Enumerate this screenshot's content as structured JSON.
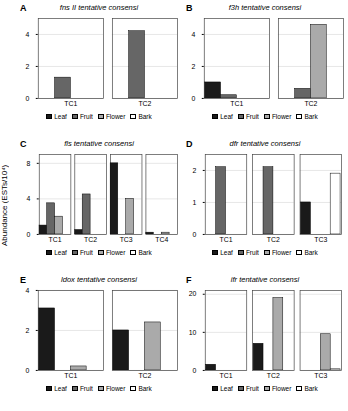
{
  "ylabel": "Abundance (ESTs/10⁴)",
  "chart_data": [
    {
      "type": "bar",
      "title": "fns II tentative consensi",
      "annotations": [
        "A"
      ],
      "categories": [
        "TC1",
        "TC2"
      ],
      "series": [
        {
          "name": "Leaf",
          "color": "#1a1a1a",
          "values": [
            0,
            0
          ]
        },
        {
          "name": "Fruit",
          "color": "#666666",
          "values": [
            1.3,
            4.2
          ]
        },
        {
          "name": "Flower",
          "color": "#aaaaaa",
          "values": [
            0,
            0
          ]
        },
        {
          "name": "Bark",
          "color": "#ffffff",
          "values": [
            0,
            0
          ]
        }
      ],
      "ylim": [
        0,
        5
      ],
      "yticks": [
        0,
        2,
        4
      ],
      "grid": true,
      "legend": "bottom"
    },
    {
      "type": "bar",
      "title": "f3h tentative consensi",
      "annotations": [
        "B"
      ],
      "categories": [
        "TC1",
        "TC2"
      ],
      "series": [
        {
          "name": "Leaf",
          "color": "#1a1a1a",
          "values": [
            1.0,
            0
          ]
        },
        {
          "name": "Fruit",
          "color": "#666666",
          "values": [
            0.2,
            0.6
          ]
        },
        {
          "name": "Flower",
          "color": "#aaaaaa",
          "values": [
            0,
            4.6
          ]
        },
        {
          "name": "Bark",
          "color": "#ffffff",
          "values": [
            0,
            0
          ]
        }
      ],
      "ylim": [
        0,
        5
      ],
      "yticks": [
        0,
        2,
        4
      ],
      "grid": true,
      "legend": "bottom"
    },
    {
      "type": "bar",
      "title": "fls tentative consensi",
      "annotations": [
        "C"
      ],
      "categories": [
        "TC1",
        "TC2",
        "TC3",
        "TC4"
      ],
      "series": [
        {
          "name": "Leaf",
          "color": "#1a1a1a",
          "values": [
            1.0,
            0.5,
            8.0,
            0.2
          ]
        },
        {
          "name": "Fruit",
          "color": "#666666",
          "values": [
            3.5,
            4.5,
            0,
            0
          ]
        },
        {
          "name": "Flower",
          "color": "#aaaaaa",
          "values": [
            2.0,
            0,
            4.0,
            0.2
          ]
        },
        {
          "name": "Bark",
          "color": "#ffffff",
          "values": [
            0,
            0,
            0,
            0
          ]
        }
      ],
      "ylim": [
        0,
        9
      ],
      "yticks": [
        0,
        4,
        8
      ],
      "grid": true,
      "legend": "bottom"
    },
    {
      "type": "bar",
      "title": "dfr tentative consensi",
      "annotations": [
        "D"
      ],
      "categories": [
        "TC1",
        "TC2",
        "TC3"
      ],
      "series": [
        {
          "name": "Leaf",
          "color": "#1a1a1a",
          "values": [
            0,
            0,
            1.0
          ]
        },
        {
          "name": "Fruit",
          "color": "#666666",
          "values": [
            2.1,
            2.1,
            0
          ]
        },
        {
          "name": "Flower",
          "color": "#aaaaaa",
          "values": [
            0,
            0,
            0
          ]
        },
        {
          "name": "Bark",
          "color": "#ffffff",
          "values": [
            0,
            0,
            1.9
          ]
        }
      ],
      "ylim": [
        0,
        2.5
      ],
      "yticks": [
        0,
        1,
        2
      ],
      "grid": true,
      "legend": "bottom"
    },
    {
      "type": "bar",
      "title": "ldox tentative consensi",
      "annotations": [
        "E"
      ],
      "categories": [
        "TC1",
        "TC2"
      ],
      "series": [
        {
          "name": "Leaf",
          "color": "#1a1a1a",
          "values": [
            3.1,
            2.0
          ]
        },
        {
          "name": "Fruit",
          "color": "#666666",
          "values": [
            0,
            0
          ]
        },
        {
          "name": "Flower",
          "color": "#aaaaaa",
          "values": [
            0.2,
            2.4
          ]
        },
        {
          "name": "Bark",
          "color": "#ffffff",
          "values": [
            0,
            0
          ]
        }
      ],
      "ylim": [
        0,
        4
      ],
      "yticks": [
        0,
        2,
        4
      ],
      "grid": true,
      "legend": "bottom"
    },
    {
      "type": "bar",
      "title": "ifr tentative consensi",
      "annotations": [
        "F"
      ],
      "categories": [
        "TC1",
        "TC2",
        "TC3"
      ],
      "series": [
        {
          "name": "Leaf",
          "color": "#1a1a1a",
          "values": [
            1.5,
            7.0,
            0
          ]
        },
        {
          "name": "Fruit",
          "color": "#666666",
          "values": [
            0,
            0,
            0
          ]
        },
        {
          "name": "Flower",
          "color": "#aaaaaa",
          "values": [
            0,
            19.0,
            9.5
          ]
        },
        {
          "name": "Bark",
          "color": "#ffffff",
          "values": [
            0,
            0,
            0.3
          ]
        }
      ],
      "ylim": [
        0,
        21
      ],
      "yticks": [
        0,
        10,
        20
      ],
      "grid": true,
      "legend": "bottom"
    }
  ]
}
